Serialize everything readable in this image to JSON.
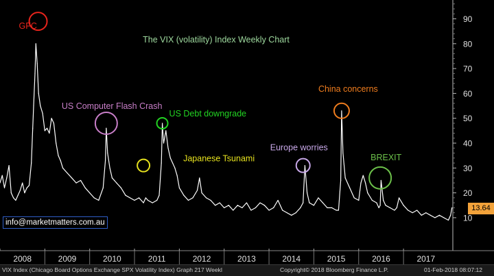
{
  "chart_data": {
    "type": "line",
    "title": "The VIX (volatility) Index Weekly Chart",
    "subtitle": "",
    "xlabel": "",
    "ylabel": "",
    "x_tick_labels": [
      "2008",
      "2009",
      "2010",
      "2011",
      "2012",
      "2013",
      "2014",
      "2015",
      "2016",
      "2017"
    ],
    "y_ticks": [
      10,
      20,
      30,
      40,
      50,
      60,
      70,
      80,
      90
    ],
    "ylim": [
      0,
      96
    ],
    "xlim": [
      2008.0,
      2018.1
    ],
    "grid": false,
    "last_value": "13.64",
    "series": [
      {
        "name": "",
        "color": "#ffffff",
        "x": [
          2008.0,
          2008.05,
          2008.1,
          2008.15,
          2008.2,
          2008.25,
          2008.3,
          2008.35,
          2008.4,
          2008.45,
          2008.5,
          2008.55,
          2008.6,
          2008.65,
          2008.7,
          2008.73,
          2008.75,
          2008.78,
          2008.8,
          2008.83,
          2008.86,
          2008.9,
          2008.95,
          2009.0,
          2009.05,
          2009.1,
          2009.15,
          2009.2,
          2009.25,
          2009.3,
          2009.35,
          2009.4,
          2009.5,
          2009.6,
          2009.7,
          2009.8,
          2009.9,
          2010.0,
          2010.1,
          2010.2,
          2010.3,
          2010.35,
          2010.37,
          2010.4,
          2010.45,
          2010.5,
          2010.55,
          2010.6,
          2010.7,
          2010.8,
          2010.9,
          2011.0,
          2011.1,
          2011.2,
          2011.25,
          2011.3,
          2011.4,
          2011.5,
          2011.55,
          2011.6,
          2011.62,
          2011.65,
          2011.7,
          2011.75,
          2011.8,
          2011.85,
          2011.9,
          2011.95,
          2012.0,
          2012.1,
          2012.2,
          2012.3,
          2012.4,
          2012.45,
          2012.5,
          2012.6,
          2012.7,
          2012.8,
          2012.9,
          2013.0,
          2013.1,
          2013.2,
          2013.3,
          2013.4,
          2013.5,
          2013.6,
          2013.7,
          2013.8,
          2013.9,
          2014.0,
          2014.1,
          2014.2,
          2014.3,
          2014.4,
          2014.5,
          2014.6,
          2014.7,
          2014.76,
          2014.8,
          2014.85,
          2014.9,
          2015.0,
          2015.1,
          2015.2,
          2015.3,
          2015.4,
          2015.5,
          2015.55,
          2015.6,
          2015.62,
          2015.65,
          2015.7,
          2015.8,
          2015.9,
          2016.0,
          2016.05,
          2016.1,
          2016.15,
          2016.2,
          2016.3,
          2016.4,
          2016.45,
          2016.48,
          2016.5,
          2016.55,
          2016.6,
          2016.7,
          2016.8,
          2016.85,
          2016.9,
          2017.0,
          2017.1,
          2017.2,
          2017.3,
          2017.4,
          2017.5,
          2017.6,
          2017.7,
          2017.8,
          2017.9,
          2018.0,
          2018.05,
          2018.08
        ],
        "values": [
          24,
          27,
          22,
          26,
          31,
          20,
          18,
          17,
          19,
          21,
          24,
          20,
          22,
          23,
          32,
          46,
          55,
          68,
          80,
          72,
          60,
          55,
          52,
          45,
          46,
          44,
          50,
          48,
          40,
          35,
          33,
          30,
          28,
          26,
          24,
          25,
          22,
          20,
          18,
          17,
          22,
          33,
          46,
          36,
          30,
          26,
          25,
          24,
          22,
          19,
          18,
          17,
          18,
          16,
          18,
          17,
          16,
          17,
          19,
          32,
          48,
          40,
          45,
          38,
          34,
          32,
          30,
          27,
          22,
          19,
          17,
          18,
          21,
          26,
          20,
          18,
          17,
          15,
          16,
          14,
          15,
          13,
          15,
          14,
          16,
          13,
          14,
          16,
          15,
          13,
          14,
          17,
          13,
          12,
          11,
          12,
          14,
          16,
          31,
          20,
          16,
          15,
          18,
          16,
          14,
          14,
          13,
          13,
          25,
          53,
          36,
          26,
          22,
          18,
          17,
          24,
          27,
          24,
          20,
          17,
          16,
          14,
          15,
          25,
          17,
          15,
          14,
          13,
          14,
          18,
          15,
          13,
          12,
          13,
          11,
          12,
          11,
          10,
          11,
          10,
          9,
          11,
          14
        ]
      }
    ],
    "annotations": [
      {
        "label": "GFC",
        "color": "#e8241c",
        "x": 2008.85,
        "y": 89
      },
      {
        "label": "US Computer Flash Crash",
        "color": "#c97fc9",
        "x": 2010.37,
        "y": 48
      },
      {
        "label": "US Debt downgrade",
        "color": "#22d422",
        "x": 2011.62,
        "y": 48
      },
      {
        "label": "Japanese Tsunami",
        "color": "#e6e21e",
        "x": 2011.2,
        "y": 31
      },
      {
        "label": "Europe worries",
        "color": "#c8a8e8",
        "x": 2014.76,
        "y": 31
      },
      {
        "label": "China concerns",
        "color": "#f07d1e",
        "x": 2015.62,
        "y": 53
      },
      {
        "label": "BREXIT",
        "color": "#6cc04a",
        "x": 2016.48,
        "y": 26
      }
    ]
  },
  "watermark_text": "info@marketmatters.com.au",
  "footer": {
    "source": "VIX Index (Chicago Board Options Exchange SPX Volatility Index) Graph 217  Weekl",
    "copyright": "Copyright© 2018 Bloomberg Finance L.P.",
    "timestamp": "01-Feb-2018 08:07:12"
  }
}
